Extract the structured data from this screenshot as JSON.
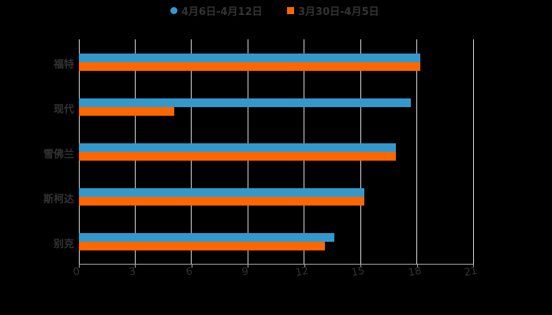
{
  "chart_data": {
    "type": "bar",
    "orientation": "horizontal",
    "title": "",
    "xlabel": "",
    "ylabel": "",
    "categories": [
      "福特",
      "现代",
      "雪佛兰",
      "斯柯达",
      "别克"
    ],
    "series": [
      {
        "name": "4月6日-4月12日",
        "color": "#3399cc",
        "marker": "circle",
        "values": [
          18.2,
          17.7,
          16.9,
          15.2,
          13.6
        ]
      },
      {
        "name": "3月30日-4月5日",
        "color": "#ff6600",
        "marker": "square",
        "values": [
          18.2,
          5.1,
          16.9,
          15.2,
          13.1
        ]
      }
    ],
    "xlim": [
      0,
      21
    ],
    "xticks": [
      "0",
      "3",
      "6",
      "9",
      "12",
      "15",
      "18",
      "21"
    ],
    "grid": {
      "vertical": true,
      "horizontal": false
    },
    "legend_position": "top"
  },
  "legend": {
    "items": [
      {
        "label": "4月6日-4月12日"
      },
      {
        "label": "3月30日-4月5日"
      }
    ]
  }
}
